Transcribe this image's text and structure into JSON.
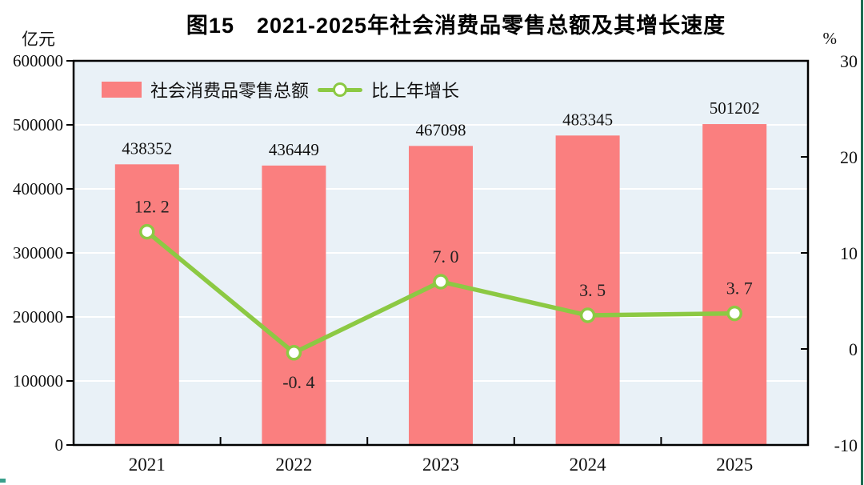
{
  "title": "图15　2021-2025年社会消费品零售总额及其增长速度",
  "left_axis_unit": "亿元",
  "right_axis_unit": "%",
  "legend": {
    "bar_label": "社会消费品零售总额",
    "line_label": "比上年增长"
  },
  "colors": {
    "bar": "#fa7f7f",
    "line": "#8cc943",
    "marker_fill": "#ffffff",
    "plot_bg": "#e9f1f7",
    "grid": "#ffffff",
    "axis": "#000000",
    "text": "#111111",
    "scan_edge": "#1f6d53",
    "scan_mark": "#3aa08c"
  },
  "chart_data": {
    "type": "bar+line combo",
    "categories": [
      "2021",
      "2022",
      "2023",
      "2024",
      "2025"
    ],
    "series": [
      {
        "name": "社会消费品零售总额",
        "type": "bar",
        "axis": "left",
        "values": [
          438352,
          436449,
          467098,
          483345,
          501202
        ],
        "labels": [
          "438352",
          "436449",
          "467098",
          "483345",
          "501202"
        ]
      },
      {
        "name": "比上年增长",
        "type": "line",
        "axis": "right",
        "values": [
          12.2,
          -0.4,
          7.0,
          3.5,
          3.7
        ],
        "labels": [
          "12. 2",
          "-0. 4",
          "7. 0",
          "3. 5",
          "3. 7"
        ],
        "label_positions": [
          "above",
          "below",
          "above",
          "above",
          "above"
        ]
      }
    ],
    "left_axis": {
      "title": "亿元",
      "min": 0,
      "max": 600000,
      "step": 100000,
      "tick_labels": [
        "0",
        "100000",
        "200000",
        "300000",
        "400000",
        "500000",
        "600000"
      ]
    },
    "right_axis": {
      "title": "%",
      "min": -10,
      "max": 30,
      "step": 10,
      "tick_labels": [
        "-10",
        "0",
        "10",
        "20",
        "30"
      ]
    },
    "grid": "horizontal white lines at each left-axis step",
    "legend_position": "top-left inside plot"
  }
}
